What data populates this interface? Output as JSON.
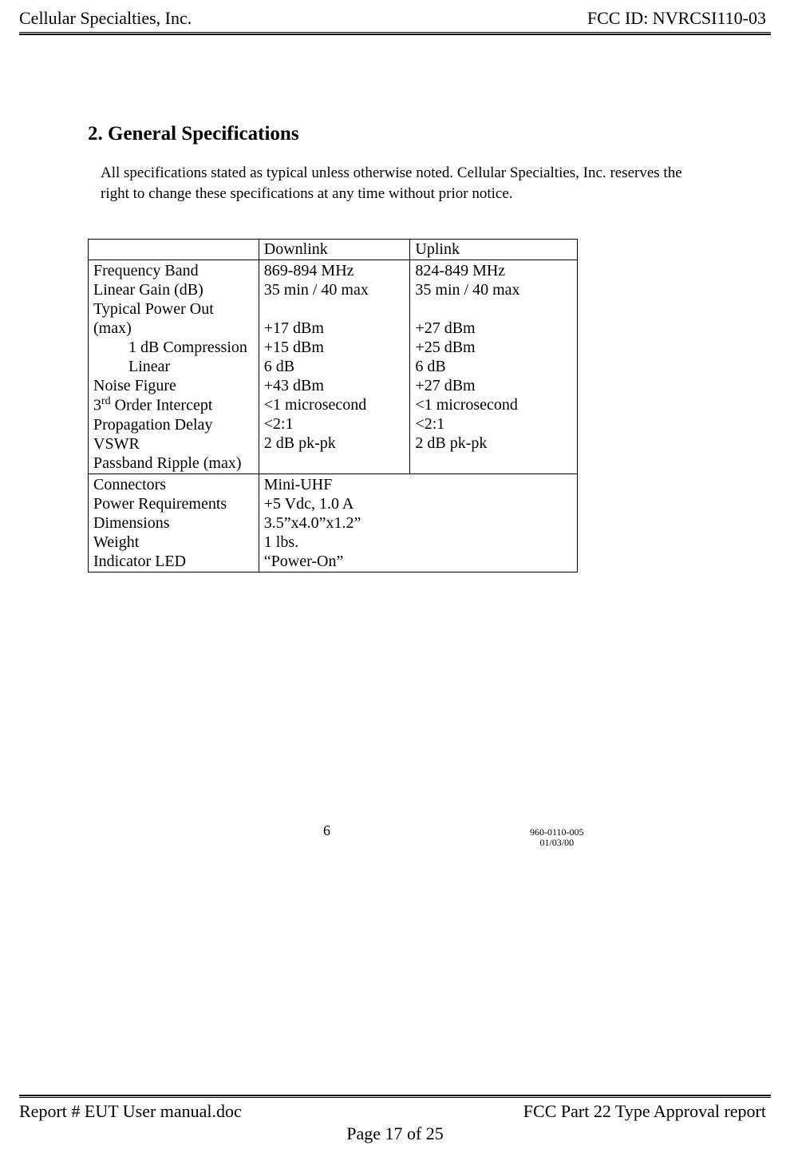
{
  "header": {
    "left": "Cellular Specialties, Inc.",
    "right": "FCC ID: NVRCSI110-03"
  },
  "section": {
    "number": "2.",
    "title": "General Specifications",
    "intro": "All specifications stated as typical unless otherwise noted.  Cellular Specialties, Inc. reserves the right to change these specifications at any time without prior notice."
  },
  "spec_table": {
    "columns": {
      "downlink": "Downlink",
      "uplink": "Uplink"
    },
    "params": {
      "freq_band": "Frequency Band",
      "linear_gain": "Linear Gain (dB)",
      "typ_power_out": "Typical Power Out (max)",
      "one_db_comp": "1 dB Compression",
      "linear": "Linear",
      "noise_figure": "Noise Figure",
      "third_order_prefix": "3",
      "third_order_sup": "rd",
      "third_order_rest": " Order Intercept",
      "prop_delay": "Propagation Delay",
      "vswr": "VSWR",
      "passband_ripple": "Passband Ripple (max)",
      "connectors": "Connectors",
      "power_req": "Power Requirements",
      "dimensions": "Dimensions",
      "weight": "Weight",
      "indicator_led": "Indicator LED"
    },
    "downlink": {
      "freq_band": "869-894 MHz",
      "linear_gain": "35 min / 40 max",
      "one_db_comp": "+17 dBm",
      "linear": "+15 dBm",
      "noise_figure": "6 dB",
      "third_order": "+43 dBm",
      "prop_delay": "<1 microsecond",
      "vswr": "<2:1",
      "passband_ripple": "2 dB pk-pk"
    },
    "uplink": {
      "freq_band": "824-849 MHz",
      "linear_gain": "35 min / 40 max",
      "one_db_comp": "+27 dBm",
      "linear": "+25 dBm",
      "noise_figure": "6 dB",
      "third_order": "+27 dBm",
      "prop_delay": "<1 microsecond",
      "vswr": "<2:1",
      "passband_ripple": "2 dB pk-pk"
    },
    "shared": {
      "connectors": "Mini-UHF",
      "power_req": "+5 Vdc, 1.0 A",
      "dimensions": "3.5”x4.0”x1.2”",
      "weight": "1 lbs.",
      "indicator_led": "“Power-On”"
    }
  },
  "inner_footer": {
    "page_num": "6",
    "doc_num": "960-0110-005",
    "doc_date": "01/03/00"
  },
  "footer": {
    "left": "Report # EUT User manual.doc",
    "right": "FCC Part 22 Type Approval report",
    "center": "Page 17 of 25"
  }
}
